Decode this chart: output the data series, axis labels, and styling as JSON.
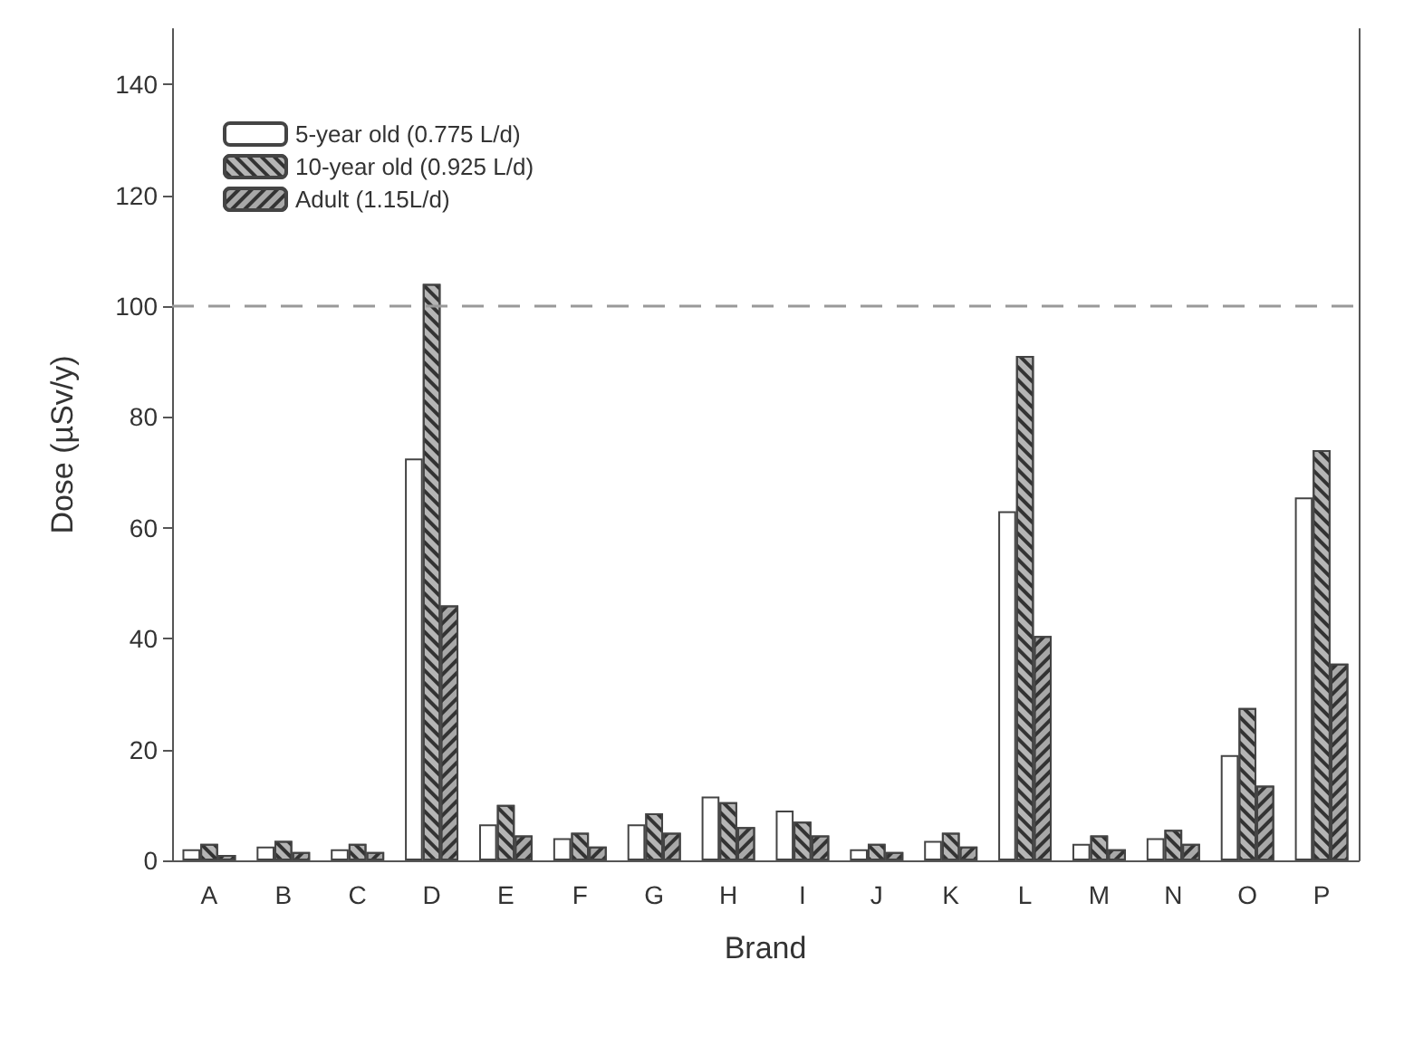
{
  "chart_data": {
    "type": "bar",
    "xlabel": "Brand",
    "ylabel": "Dose (µSv/y)",
    "categories": [
      "A",
      "B",
      "C",
      "D",
      "E",
      "F",
      "G",
      "H",
      "I",
      "J",
      "K",
      "L",
      "M",
      "N",
      "O",
      "P"
    ],
    "series": [
      {
        "name": "5-year old (0.775 L/d)",
        "color": "#ffffff",
        "values": [
          2,
          2.5,
          2,
          72.5,
          6.5,
          4,
          6.5,
          11.5,
          9,
          2,
          3.5,
          63,
          3,
          4,
          19,
          65.5
        ]
      },
      {
        "name": "10-year old (0.925 L/d)",
        "color": "#b5b5b5",
        "values": [
          3,
          3.5,
          3,
          104,
          10,
          5,
          8.5,
          10.5,
          7,
          3,
          5,
          91,
          4.5,
          5.5,
          27.5,
          74
        ]
      },
      {
        "name": "Adult (1.15L/d)",
        "color": "#a8a8a8",
        "values": [
          1,
          1.5,
          1.5,
          46,
          4.5,
          2.5,
          5,
          6,
          4.5,
          1.5,
          2.5,
          40.5,
          2,
          3,
          13.5,
          35.5
        ]
      }
    ],
    "ylim": [
      0,
      150
    ],
    "yticks": [
      0,
      20,
      40,
      60,
      80,
      100,
      120,
      140
    ],
    "ref_lines": [
      {
        "axis": "y",
        "value": 100,
        "color": "#999999",
        "line_style": "dashed"
      }
    ],
    "legend": "top left",
    "grid": false
  }
}
